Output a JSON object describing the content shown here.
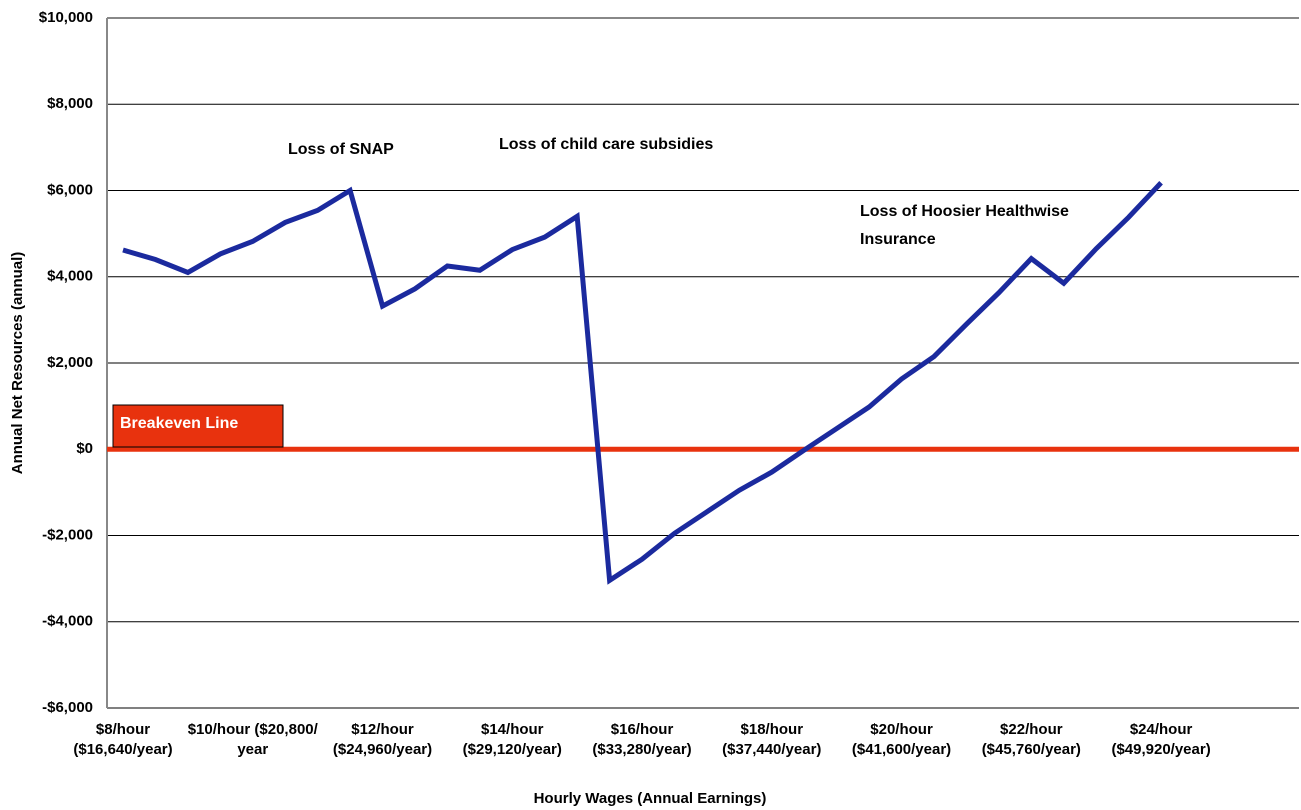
{
  "chart_data": {
    "type": "line",
    "x_label": "Hourly Wages (Annual Earnings)",
    "y_label": "Annual Net Resources (annual)",
    "categories": [
      "$8/hour\n($16,640/year)",
      null,
      null,
      null,
      "$10/hour ($20,800/\nyear",
      null,
      null,
      null,
      "$12/hour\n($24,960/year)",
      null,
      null,
      null,
      "$14/hour\n($29,120/year)",
      null,
      null,
      null,
      "$16/hour\n($33,280/year)",
      null,
      null,
      null,
      "$18/hour\n($37,440/year)",
      null,
      null,
      null,
      "$20/hour\n($41,600/year)",
      null,
      null,
      null,
      "$22/hour\n($45,760/year)",
      null,
      null,
      null,
      "$24/hour\n($49,920/year)"
    ],
    "series": [
      {
        "name": "Annual Net Resources",
        "color": "#1b2a9e",
        "values": [
          4620,
          4400,
          4100,
          4530,
          4820,
          5260,
          5540,
          6000,
          3320,
          3720,
          4250,
          4150,
          4630,
          4920,
          5400,
          -3040,
          -2550,
          -1950,
          -1450,
          -950,
          -530,
          -20,
          480,
          980,
          1630,
          2150,
          2900,
          3630,
          4420,
          3850,
          4650,
          5380,
          6180
        ]
      }
    ],
    "ylim": [
      -6000,
      10000
    ],
    "yticks": [
      {
        "value": -6000,
        "label": "-$6,000"
      },
      {
        "value": -4000,
        "label": "-$4,000"
      },
      {
        "value": -2000,
        "label": "-$2,000"
      },
      {
        "value": 0,
        "label": "$0"
      },
      {
        "value": 2000,
        "label": "$2,000"
      },
      {
        "value": 4000,
        "label": "$4,000"
      },
      {
        "value": 6000,
        "label": "$6,000"
      },
      {
        "value": 8000,
        "label": "$8,000"
      },
      {
        "value": 10000,
        "label": "$10,000"
      }
    ],
    "grid": true,
    "reference_line": {
      "value": 0,
      "label": "Breakeven Line",
      "color": "#e8320e"
    },
    "annotations": [
      "Loss of SNAP",
      "Loss of child care subsidies",
      "Loss of Hoosier Healthwise\nInsurance"
    ]
  }
}
